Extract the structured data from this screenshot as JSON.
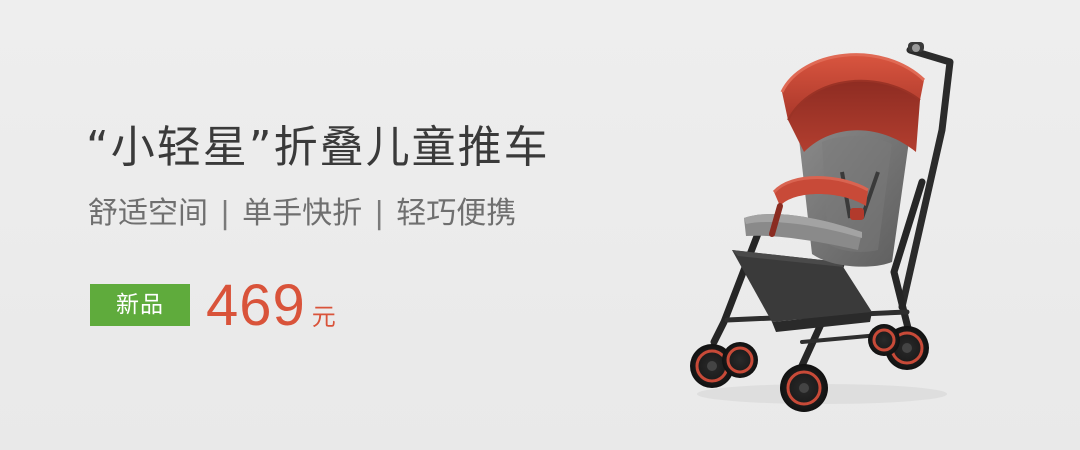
{
  "banner": {
    "title": "“小轻星”折叠儿童推车",
    "features": [
      "舒适空间",
      "单手快折",
      "轻巧便携"
    ],
    "separator": "|",
    "tag": "新品",
    "price": "469",
    "currency": "元"
  },
  "image": {
    "icon": "stroller-image"
  },
  "colors": {
    "background": "#ebebeb",
    "title": "#3a3a3a",
    "subtitle": "#6f6f6f",
    "tag": "#5fab3c",
    "price": "#d9533a",
    "canopy": "#c84a38"
  }
}
